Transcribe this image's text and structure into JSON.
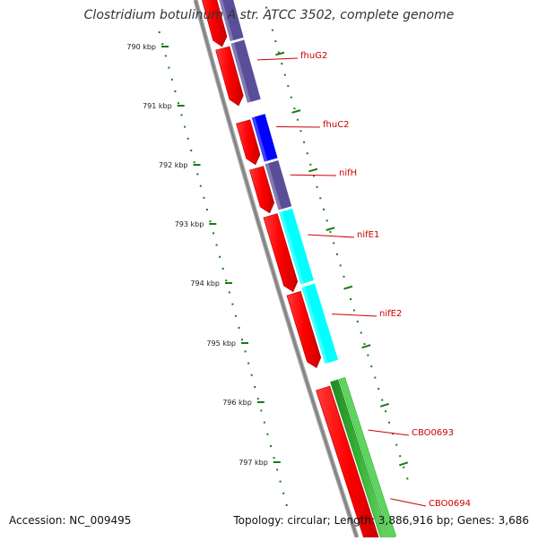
{
  "title": "Clostridium botulinum A str. ATCC 3502, complete genome",
  "footer": {
    "accession_text": "Accession: NC_009495",
    "summary_text": "Topology: circular; Length: 3,886,916 bp; Genes: 3,686"
  },
  "scale_labels": [
    "790 kbp",
    "791 kbp",
    "792 kbp",
    "793 kbp",
    "794 kbp",
    "795 kbp",
    "796 kbp",
    "797 kbp"
  ],
  "genes": [
    {
      "name": "fhuG2"
    },
    {
      "name": "fhuC2"
    },
    {
      "name": "nifH"
    },
    {
      "name": "nifE1"
    },
    {
      "name": "nifE2"
    },
    {
      "name": "CBO0693"
    },
    {
      "name": "CBO0694"
    }
  ],
  "colors": {
    "backbone": "#808080",
    "cds": "#ff0000",
    "cog_purple": "#5a4e98",
    "cog_blue": "#0000ff",
    "cog_cyan": "#00ffff",
    "cog_green": "#2e9e2e",
    "tick": "#1a7a1a",
    "gene_label": "#cc0000",
    "text": "#111111"
  }
}
